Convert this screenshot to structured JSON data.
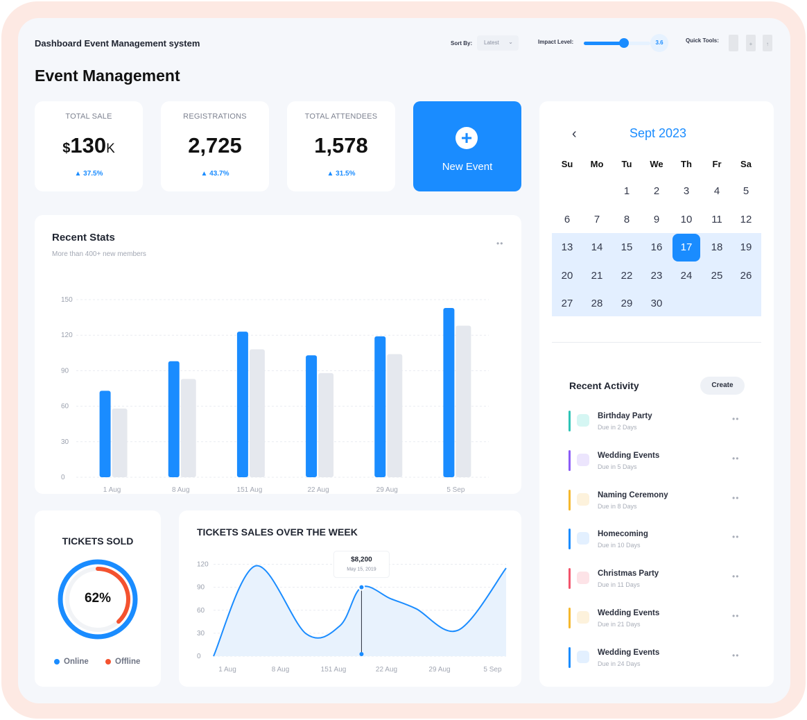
{
  "header": {
    "app_title": "Dashboard Event Management system",
    "page_title": "Event Management",
    "sort_label": "Sort By:",
    "sort_value": "Latest",
    "impact_label": "Impact Level:",
    "impact_value": "3.6",
    "impact_level_fraction": 0.6,
    "quick_tools_label": "Quick Tools:",
    "quick_tools": [
      "file-icon",
      "file-add-icon",
      "file-upload-icon"
    ]
  },
  "stats": [
    {
      "label": "TOTAL SALE",
      "prefix": "$",
      "value": "130",
      "unit": "K",
      "change": "37.5%"
    },
    {
      "label": "REGISTRATIONS",
      "value": "2,725",
      "change": "43.7%"
    },
    {
      "label": "TOTAL ATTENDEES",
      "value": "1,578",
      "change": "31.5%"
    }
  ],
  "new_event": {
    "label": "New Event",
    "icon": "plus-icon"
  },
  "recent_stats": {
    "title": "Recent Stats",
    "subtitle": "More than 400+ new members",
    "menu_icon": "more-icon"
  },
  "chart_data": [
    {
      "type": "bar",
      "categories": [
        "1 Aug",
        "8 Aug",
        "151 Aug",
        "22 Aug",
        "29 Aug",
        "5 Sep"
      ],
      "series": [
        {
          "values": [
            73,
            98,
            123,
            103,
            119,
            143
          ],
          "color": "#1a8cff"
        },
        {
          "values": [
            58,
            83,
            108,
            88,
            104,
            128
          ],
          "color": "#e5e8ee"
        }
      ],
      "yticks": [
        0,
        30,
        60,
        90,
        120,
        150
      ],
      "ylim": [
        0,
        150
      ],
      "grid": true
    },
    {
      "type": "area",
      "title": "TICKETS SALES OVER THE WEEK",
      "x": [
        0,
        1,
        2,
        3,
        4,
        5
      ],
      "xlabels": [
        "1 Aug",
        "8 Aug",
        "151 Aug",
        "22 Aug",
        "29 Aug",
        "5 Sep"
      ],
      "points": [
        [
          0,
          0
        ],
        [
          0.75,
          118
        ],
        [
          1.65,
          29
        ],
        [
          2.25,
          40
        ],
        [
          2.63,
          90
        ],
        [
          3.15,
          75
        ],
        [
          3.6,
          62
        ],
        [
          4.35,
          34
        ],
        [
          5.2,
          115
        ]
      ],
      "yticks": [
        0,
        30,
        60,
        90,
        120
      ],
      "ylim": [
        0,
        125
      ],
      "highlight": {
        "x": 2.63,
        "y": 90,
        "value": "$8,200",
        "date": "May 15, 2019"
      },
      "color": "#1a8cff",
      "fill": "#e8f2fd",
      "grid": true
    },
    {
      "type": "pie",
      "title": "TICKETS SOLD",
      "center_label": "62%",
      "series": [
        {
          "name": "Online",
          "value": 62,
          "color": "#1a8cff"
        },
        {
          "name": "Offline",
          "value": 38,
          "color": "#f4522f"
        }
      ]
    }
  ],
  "tickets_sold": {
    "title": "TICKETS SOLD",
    "center": "62%",
    "legend": [
      {
        "name": "Online",
        "color": "#1a8cff"
      },
      {
        "name": "Offline",
        "color": "#f4522f"
      }
    ]
  },
  "calendar": {
    "month": "Sept 2023",
    "prev_icon": "chevron-left-icon",
    "weekdays": [
      "Su",
      "Mo",
      "Tu",
      "We",
      "Th",
      "Fr",
      "Sa"
    ],
    "selected": "17",
    "rows": [
      [
        "",
        "",
        "1",
        "2",
        "3",
        "4",
        "5"
      ],
      [
        "6",
        "7",
        "8",
        "9",
        "10",
        "11",
        "12"
      ],
      [
        "13",
        "14",
        "15",
        "16",
        "17",
        "18",
        "19"
      ],
      [
        "20",
        "21",
        "22",
        "23",
        "24",
        "25",
        "26"
      ],
      [
        "27",
        "28",
        "29",
        "30",
        "",
        "",
        ""
      ]
    ]
  },
  "activity": {
    "title": "Recent Activity",
    "create_label": "Create",
    "items": [
      {
        "name": "Birthday Party",
        "due": "Due in 2 Days",
        "color": "#2ec4b6",
        "bg": "#d5f6f3"
      },
      {
        "name": "Wedding Events",
        "due": "Due in 5 Days",
        "color": "#8b5cf6",
        "bg": "#ece5fd"
      },
      {
        "name": "Naming Ceremony",
        "due": "Due in 8 Days",
        "color": "#f5b82e",
        "bg": "#fdf2dc"
      },
      {
        "name": "Homecoming",
        "due": "Due in 10 Days",
        "color": "#1a8cff",
        "bg": "#e3f0ff"
      },
      {
        "name": "Christmas Party",
        "due": "Due in 11 Days",
        "color": "#f2546c",
        "bg": "#fde3e7"
      },
      {
        "name": "Wedding Events",
        "due": "Due in 21 Days",
        "color": "#f5b82e",
        "bg": "#fdf2dc"
      },
      {
        "name": "Wedding Events",
        "due": "Due in 24 Days",
        "color": "#1a8cff",
        "bg": "#e3f0ff"
      }
    ]
  }
}
